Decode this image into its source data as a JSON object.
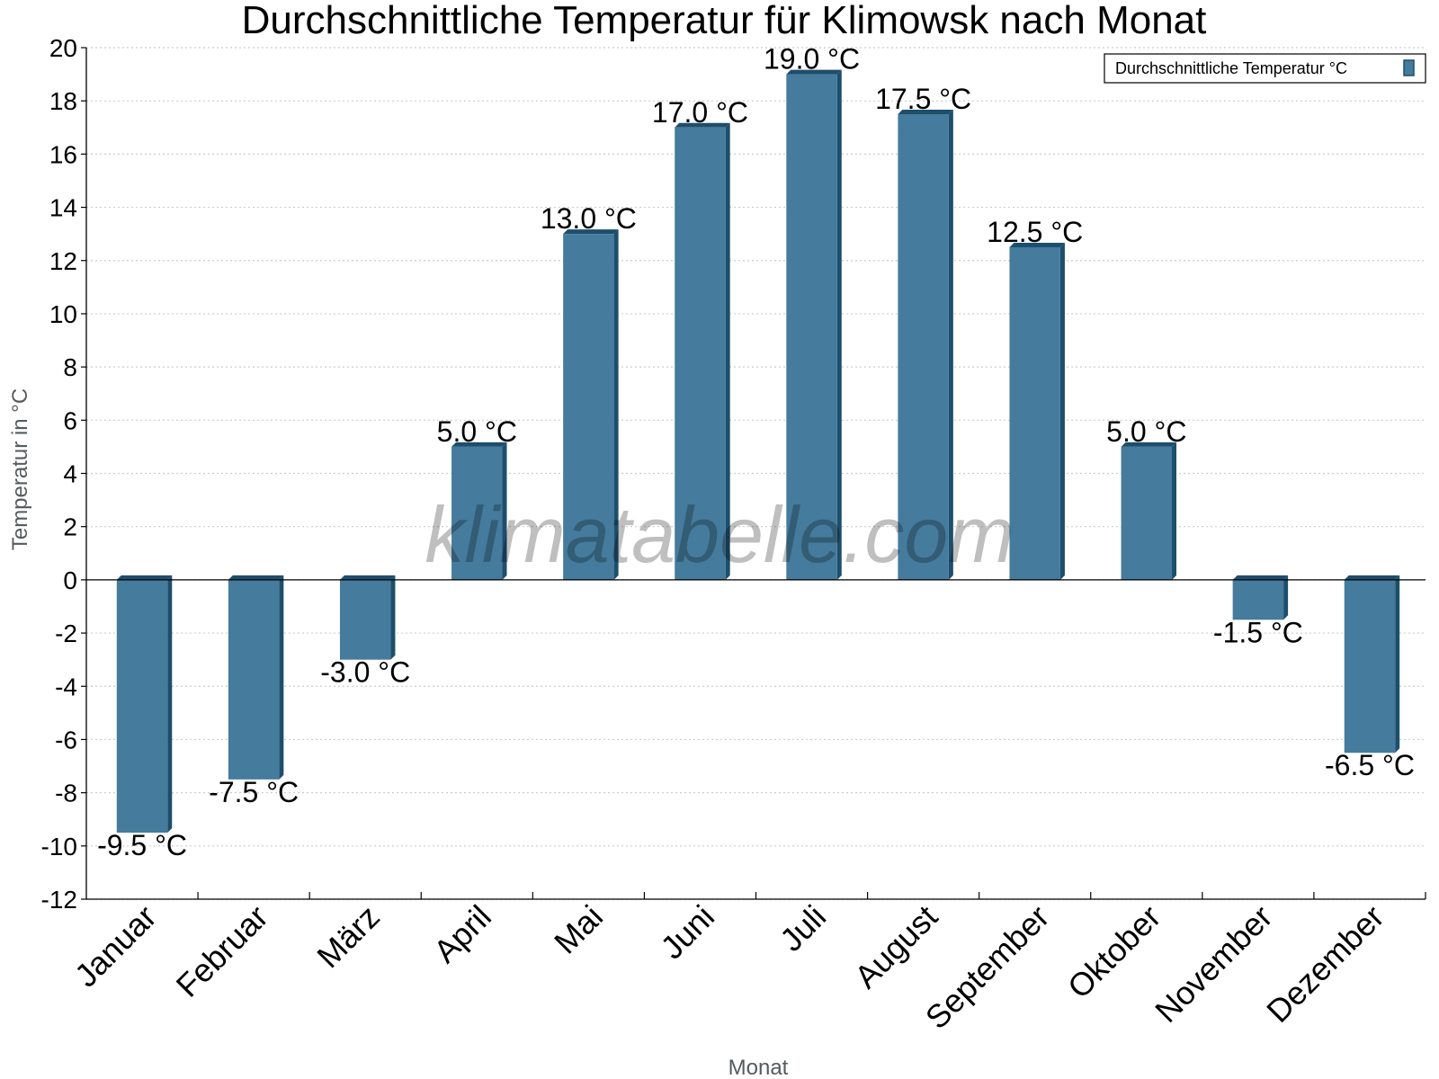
{
  "chart_data": {
    "type": "bar",
    "title": "Durchschnittliche Temperatur für Klimowsk nach Monat",
    "xlabel": "Monat",
    "ylabel": "Temperatur in °C",
    "categories": [
      "Januar",
      "Februar",
      "März",
      "April",
      "Mai",
      "Juni",
      "Juli",
      "August",
      "September",
      "Oktober",
      "November",
      "Dezember"
    ],
    "series": [
      {
        "name": "Durchschnittliche Temperatur °C",
        "values": [
          -9.5,
          -7.5,
          -3.0,
          5.0,
          13.0,
          17.0,
          19.0,
          17.5,
          12.5,
          5.0,
          -1.5,
          -6.5
        ],
        "data_labels": [
          "-9.5 °C",
          "-7.5 °C",
          "-3.0 °C",
          "5.0 °C",
          "13.0 °C",
          "17.0 °C",
          "19.0 °C",
          "17.5 °C",
          "12.5 °C",
          "5.0 °C",
          "-1.5 °C",
          "-6.5 °C"
        ],
        "color": "#457b9d"
      }
    ],
    "ylim": [
      -12,
      20
    ],
    "yticks": [
      "-12",
      "-10",
      "-8",
      "-6",
      "-4",
      "-2",
      "0",
      "2",
      "4",
      "6",
      "8",
      "10",
      "12",
      "14",
      "16",
      "18",
      "20"
    ],
    "grid": true,
    "legend": "top-right"
  },
  "watermark": "klimatabelle.com",
  "colors": {
    "bar_face": "#457b9d",
    "bar_edge": "#1d4e6c",
    "grid": "#cccccc",
    "axis": "#000000"
  }
}
